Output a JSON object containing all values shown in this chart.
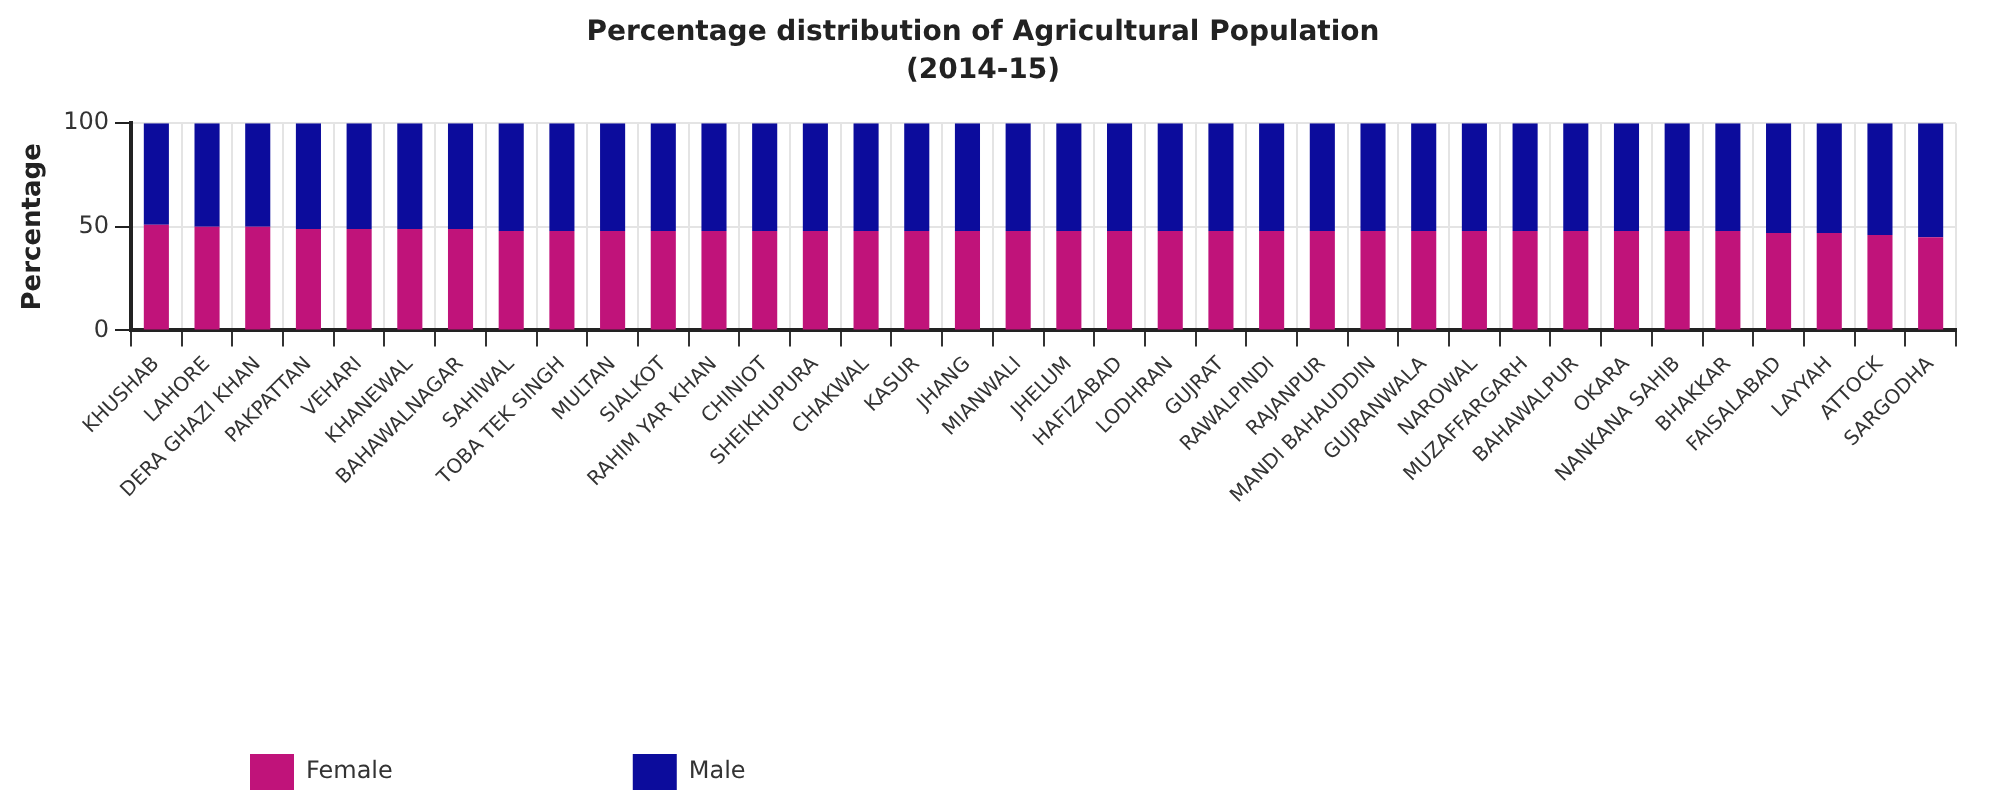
{
  "chart_data": {
    "type": "bar",
    "title": "Percentage distribution of Agricultural Population",
    "subtitle": "(2014-15)",
    "ylabel": "Percentage",
    "categories": [
      "KHUSHAB",
      "LAHORE",
      "DERA GHAZI KHAN",
      "PAKPATTAN",
      "VEHARI",
      "KHANEWAL",
      "BAHAWALNAGAR",
      "SAHIWAL",
      "TOBA TEK SINGH",
      "MULTAN",
      "SIALKOT",
      "RAHIM YAR KHAN",
      "CHINIOT",
      "SHEIKHUPURA",
      "CHAKWAL",
      "KASUR",
      "JHANG",
      "MIANWALI",
      "JHELUM",
      "HAFIZABAD",
      "LODHRAN",
      "GUJRAT",
      "RAWALPINDI",
      "RAJANPUR",
      "MANDI BAHAUDDIN",
      "GUJRANWALA",
      "NAROWAL",
      "MUZAFFARGARH",
      "BAHAWALPUR",
      "OKARA",
      "NANKANA SAHIB",
      "BHAKKAR",
      "FAISALABAD",
      "LAYYAH",
      "ATTOCK",
      "SARGODHA"
    ],
    "stacked": true,
    "series": [
      {
        "name": "Female",
        "color": "#c0137a",
        "values": [
          51,
          50,
          50,
          49,
          49,
          49,
          49,
          48,
          48,
          48,
          48,
          48,
          48,
          48,
          48,
          48,
          48,
          48,
          48,
          48,
          48,
          48,
          48,
          48,
          48,
          48,
          48,
          48,
          48,
          48,
          48,
          48,
          47,
          47,
          46,
          45
        ]
      },
      {
        "name": "Male",
        "color": "#0c0c9c",
        "values": [
          49,
          50,
          50,
          51,
          51,
          51,
          51,
          52,
          52,
          52,
          52,
          52,
          52,
          52,
          52,
          52,
          52,
          52,
          52,
          52,
          52,
          52,
          52,
          52,
          52,
          52,
          52,
          52,
          52,
          52,
          52,
          52,
          53,
          53,
          54,
          55
        ]
      }
    ],
    "ylim": [
      0,
      100
    ],
    "yticks": [
      0,
      50,
      100
    ],
    "grid": true,
    "legend": "bottom left"
  }
}
